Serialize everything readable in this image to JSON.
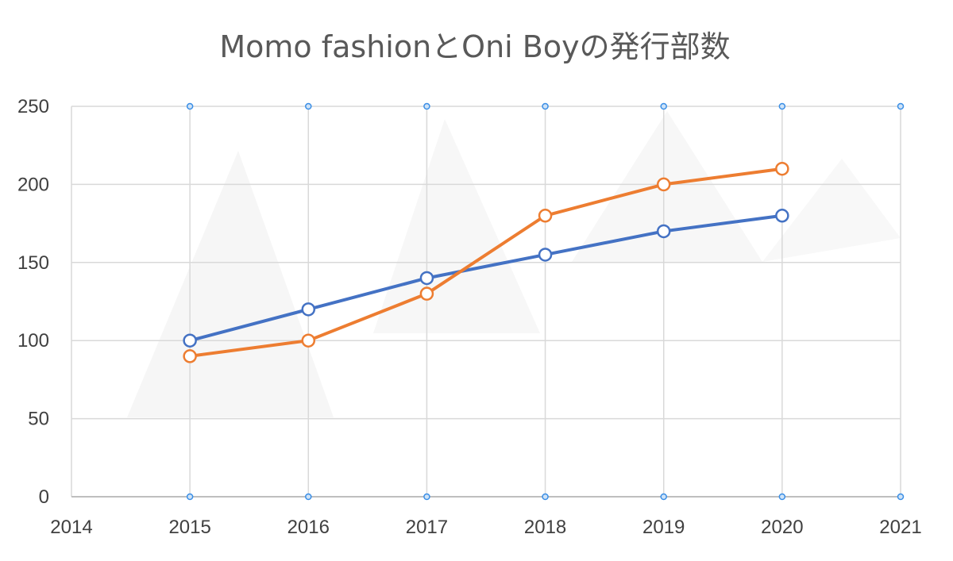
{
  "chart_data": {
    "type": "line",
    "title": "Momo fashionとOni Boyの発行部数",
    "xlabel": "",
    "ylabel": "",
    "x": [
      2015,
      2016,
      2017,
      2018,
      2019,
      2020
    ],
    "xlim": [
      2014,
      2021
    ],
    "ylim": [
      0,
      250
    ],
    "x_ticks": [
      "2014",
      "2015",
      "2016",
      "2017",
      "2018",
      "2019",
      "2020",
      "2021"
    ],
    "y_ticks": [
      "0",
      "50",
      "100",
      "150",
      "200",
      "250"
    ],
    "grid": true,
    "legend": "none",
    "series": [
      {
        "color": "#4472C4",
        "values": [
          100,
          120,
          140,
          155,
          170,
          180
        ]
      },
      {
        "color": "#ED7D31",
        "values": [
          90,
          100,
          130,
          180,
          200,
          210
        ]
      }
    ]
  }
}
